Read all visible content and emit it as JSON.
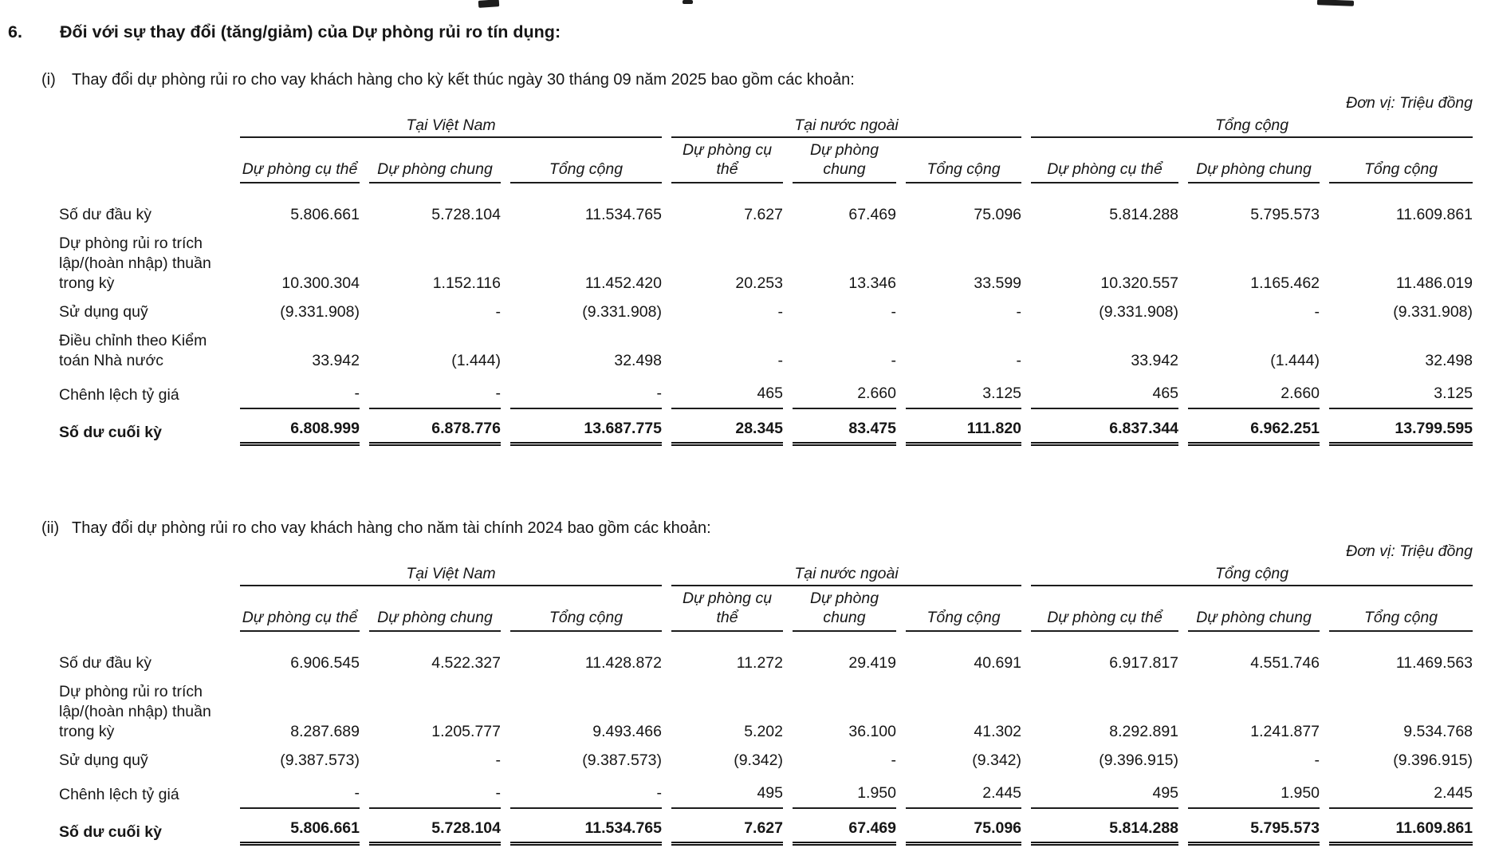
{
  "page": {
    "section_number": "6.",
    "section_title": "Đối với sự thay đổi (tăng/giảm) của Dự phòng rủi ro tín dụng:",
    "unit_label": "Đơn vị: Triệu đồng"
  },
  "tables": [
    {
      "marker": "(i)",
      "caption": "Thay đổi dự phòng rủi ro cho vay khách hàng cho kỳ kết thúc ngày 30 tháng 09 năm 2025 bao gồm các khoản:",
      "groups": [
        "Tại Việt Nam",
        "Tại nước ngoài",
        "Tổng cộng"
      ],
      "subheaders": [
        "Dự phòng cụ thể",
        "Dự phòng chung",
        "Tổng cộng",
        "Dự phòng cụ thể",
        "Dự phòng chung",
        "Tổng cộng",
        "Dự phòng cụ thể",
        "Dự phòng chung",
        "Tổng cộng"
      ],
      "rows": [
        {
          "label": "Số dư đầu kỳ",
          "values": [
            "5.806.661",
            "5.728.104",
            "11.534.765",
            "7.627",
            "67.469",
            "75.096",
            "5.814.288",
            "5.795.573",
            "11.609.861"
          ]
        },
        {
          "label": "Dự phòng rủi ro trích lập/(hoàn nhập) thuần trong kỳ",
          "values": [
            "10.300.304",
            "1.152.116",
            "11.452.420",
            "20.253",
            "13.346",
            "33.599",
            "10.320.557",
            "1.165.462",
            "11.486.019"
          ]
        },
        {
          "label": "Sử dụng quỹ",
          "values": [
            "(9.331.908)",
            "-",
            "(9.331.908)",
            "-",
            "-",
            "-",
            "(9.331.908)",
            "-",
            "(9.331.908)"
          ]
        },
        {
          "label": "Điều chỉnh theo Kiểm toán Nhà nước",
          "values": [
            "33.942",
            "(1.444)",
            "32.498",
            "-",
            "-",
            "-",
            "33.942",
            "(1.444)",
            "32.498"
          ]
        },
        {
          "label": "Chênh lệch tỷ giá",
          "values": [
            "-",
            "-",
            "-",
            "465",
            "2.660",
            "3.125",
            "465",
            "2.660",
            "3.125"
          ],
          "underline": true
        },
        {
          "label": "Số dư cuối kỳ",
          "values": [
            "6.808.999",
            "6.878.776",
            "13.687.775",
            "28.345",
            "83.475",
            "111.820",
            "6.837.344",
            "6.962.251",
            "13.799.595"
          ],
          "total": true
        }
      ]
    },
    {
      "marker": "(ii)",
      "caption": "Thay đổi dự phòng rủi ro cho vay khách hàng cho năm tài chính 2024 bao gồm các khoản:",
      "groups": [
        "Tại Việt Nam",
        "Tại nước ngoài",
        "Tổng cộng"
      ],
      "subheaders": [
        "Dự phòng cụ thể",
        "Dự phòng chung",
        "Tổng cộng",
        "Dự phòng cụ thể",
        "Dự phòng chung",
        "Tổng cộng",
        "Dự phòng cụ thể",
        "Dự phòng chung",
        "Tổng cộng"
      ],
      "rows": [
        {
          "label": "Số dư đầu kỳ",
          "values": [
            "6.906.545",
            "4.522.327",
            "11.428.872",
            "11.272",
            "29.419",
            "40.691",
            "6.917.817",
            "4.551.746",
            "11.469.563"
          ]
        },
        {
          "label": "Dự phòng rủi ro trích lập/(hoàn nhập) thuần trong kỳ",
          "values": [
            "8.287.689",
            "1.205.777",
            "9.493.466",
            "5.202",
            "36.100",
            "41.302",
            "8.292.891",
            "1.241.877",
            "9.534.768"
          ]
        },
        {
          "label": "Sử dụng quỹ",
          "values": [
            "(9.387.573)",
            "-",
            "(9.387.573)",
            "(9.342)",
            "-",
            "(9.342)",
            "(9.396.915)",
            "-",
            "(9.396.915)"
          ]
        },
        {
          "label": "Chênh lệch tỷ giá",
          "values": [
            "-",
            "-",
            "-",
            "495",
            "1.950",
            "2.445",
            "495",
            "1.950",
            "2.445"
          ],
          "underline": true
        },
        {
          "label": "Số dư cuối kỳ",
          "values": [
            "5.806.661",
            "5.728.104",
            "11.534.765",
            "7.627",
            "67.469",
            "75.096",
            "5.814.288",
            "5.795.573",
            "11.609.861"
          ],
          "total": true
        }
      ]
    }
  ]
}
